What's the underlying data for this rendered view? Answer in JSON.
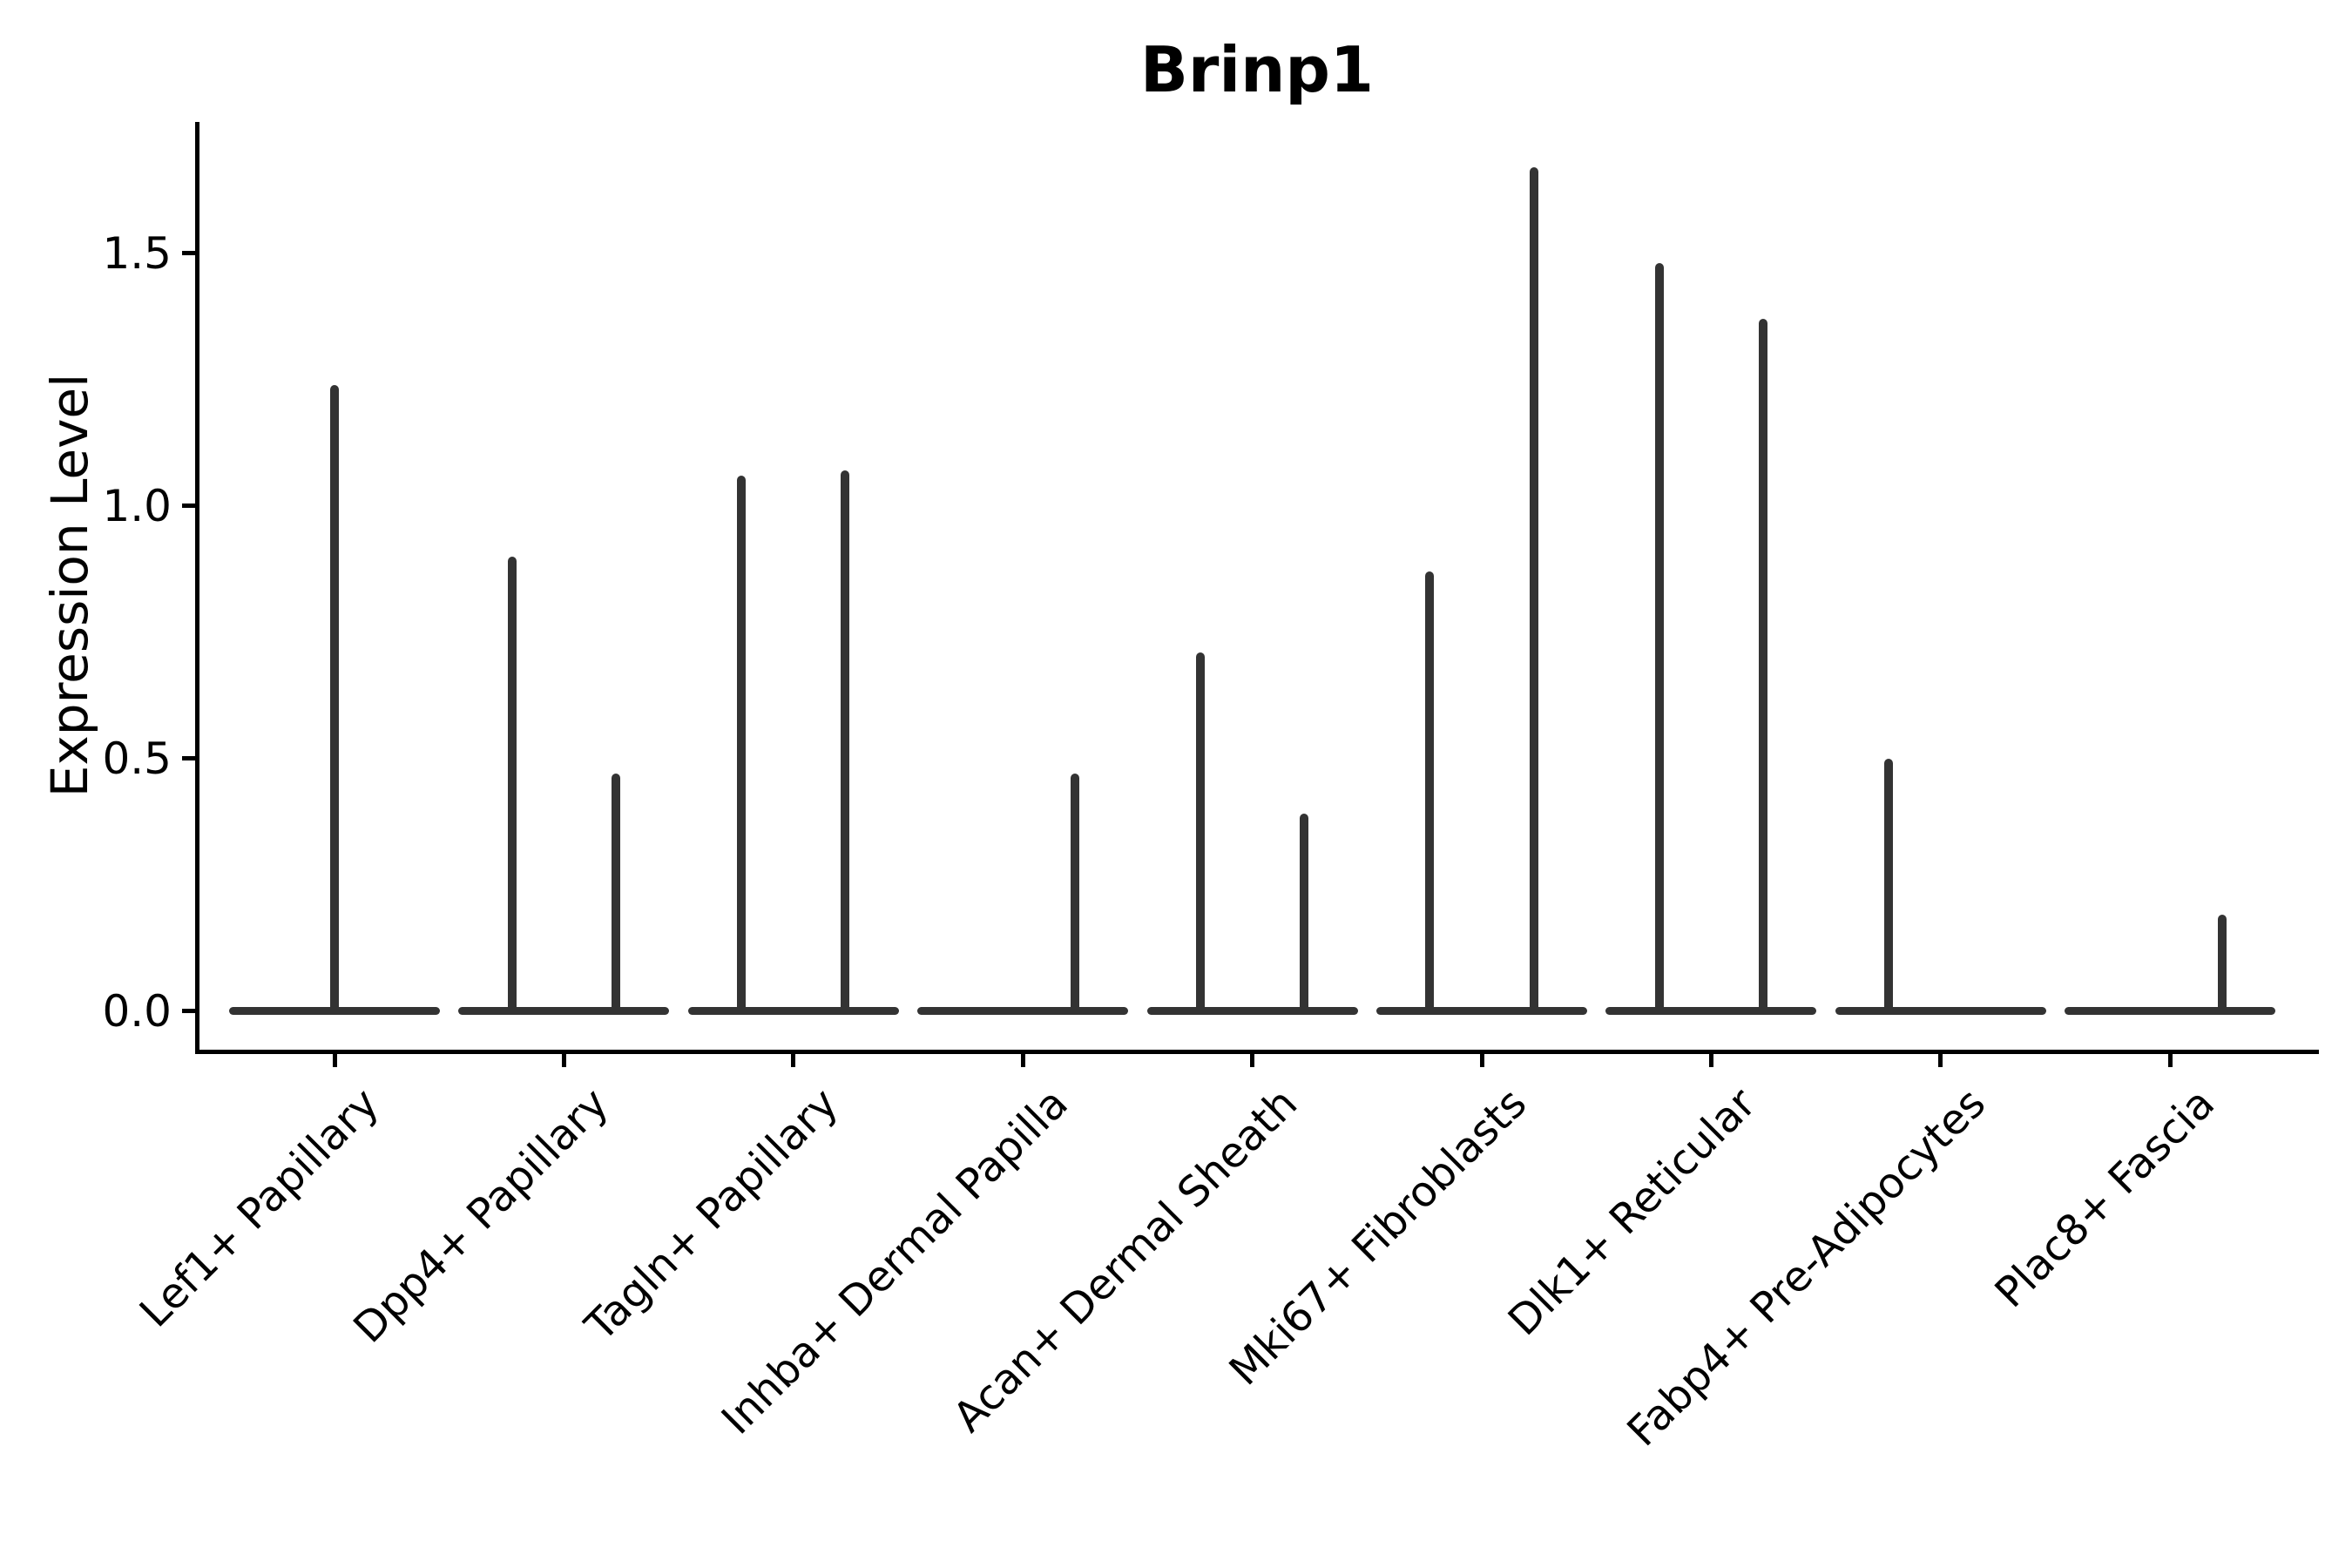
{
  "title": "Brinp1",
  "ylabel": "Expression Level",
  "chart_data": {
    "type": "violin",
    "title": "Brinp1",
    "xlabel": "",
    "ylabel": "Expression Level",
    "grid": false,
    "legend": null,
    "yticks": [
      "0.0",
      "0.5",
      "1.0",
      "1.5"
    ],
    "ytick_values": [
      0.0,
      0.5,
      1.0,
      1.5
    ],
    "ylim": [
      -0.08,
      1.76
    ],
    "categories": [
      "Lef1+ Papillary",
      "Dpp4+ Papillary",
      "Tagln+ Papillary",
      "Inhba+ Dermal Papilla",
      "Acan+ Dermal Sheath",
      "Mki67+ Fibroblasts",
      "Dlk1+ Reticular",
      "Fabp4+ Pre-Adipocytes",
      "Plac8+ Fascia"
    ],
    "description": "Violin plot of Brinp1 expression per fibroblast subtype; each violin is collapsed to a flat bar at 0 expression with thin spikes rising to the maximum expression values.",
    "series": [
      {
        "category": "Lef1+ Papillary",
        "spikes": [
          {
            "offset": 0,
            "max": 1.24
          }
        ]
      },
      {
        "category": "Dpp4+ Papillary",
        "spikes": [
          {
            "offset": -0.226,
            "max": 0.9
          },
          {
            "offset": 0.226,
            "max": 0.47
          }
        ]
      },
      {
        "category": "Tagln+ Papillary",
        "spikes": [
          {
            "offset": -0.226,
            "max": 1.06
          },
          {
            "offset": 0.226,
            "max": 1.07
          }
        ]
      },
      {
        "category": "Inhba+ Dermal Papilla",
        "spikes": [
          {
            "offset": 0.226,
            "max": 0.47
          }
        ]
      },
      {
        "category": "Acan+ Dermal Sheath",
        "spikes": [
          {
            "offset": -0.226,
            "max": 0.71
          },
          {
            "offset": 0.226,
            "max": 0.39
          }
        ]
      },
      {
        "category": "Mki67+ Fibroblasts",
        "spikes": [
          {
            "offset": -0.226,
            "max": 0.87
          },
          {
            "offset": 0.226,
            "max": 1.67
          }
        ]
      },
      {
        "category": "Dlk1+ Reticular",
        "spikes": [
          {
            "offset": -0.226,
            "max": 1.48
          },
          {
            "offset": 0.226,
            "max": 1.37
          }
        ]
      },
      {
        "category": "Fabp4+ Pre-Adipocytes",
        "spikes": [
          {
            "offset": -0.226,
            "max": 0.5
          }
        ]
      },
      {
        "category": "Plac8+ Fascia",
        "spikes": [
          {
            "offset": 0.226,
            "max": 0.19
          }
        ]
      }
    ],
    "colors": {
      "violin": "#333333",
      "axis": "#000000",
      "text": "#000000",
      "background": "#ffffff"
    }
  }
}
